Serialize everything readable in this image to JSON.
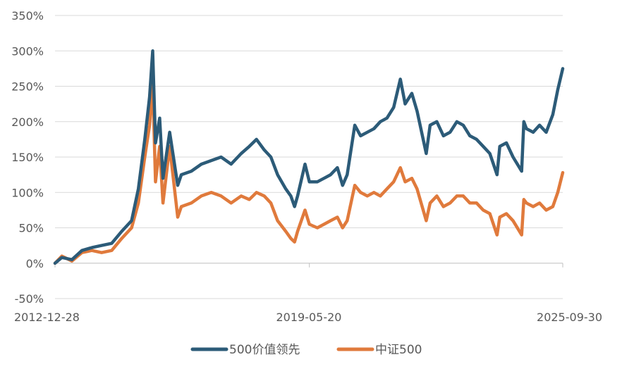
{
  "chart_data": {
    "type": "line",
    "title": "",
    "xlabel": "",
    "ylabel": "",
    "ylim": [
      -50,
      350
    ],
    "y_ticks": [
      "350%",
      "300%",
      "250%",
      "200%",
      "150%",
      "100%",
      "50%",
      "0%",
      "-50%"
    ],
    "x_ticks": [
      "2012-12-28",
      "2019-05-20",
      "2025-09-30"
    ],
    "x_range": [
      "2012-12-28",
      "2025-09-30"
    ],
    "grid": "horizontal",
    "legend_position": "bottom",
    "series": [
      {
        "name": "500价值领先",
        "color": "#2C5B78",
        "points": [
          [
            "2012-12-28",
            0
          ],
          [
            "2013-03-01",
            8
          ],
          [
            "2013-06-01",
            5
          ],
          [
            "2013-09-01",
            18
          ],
          [
            "2013-12-01",
            22
          ],
          [
            "2014-03-01",
            25
          ],
          [
            "2014-06-01",
            28
          ],
          [
            "2014-09-01",
            45
          ],
          [
            "2014-12-01",
            60
          ],
          [
            "2015-02-01",
            105
          ],
          [
            "2015-04-01",
            175
          ],
          [
            "2015-05-15",
            235
          ],
          [
            "2015-06-12",
            300
          ],
          [
            "2015-07-08",
            170
          ],
          [
            "2015-08-15",
            205
          ],
          [
            "2015-09-15",
            120
          ],
          [
            "2015-11-15",
            185
          ],
          [
            "2016-01-28",
            110
          ],
          [
            "2016-03-01",
            125
          ],
          [
            "2016-06-01",
            130
          ],
          [
            "2016-09-01",
            140
          ],
          [
            "2016-12-01",
            145
          ],
          [
            "2017-03-01",
            150
          ],
          [
            "2017-06-01",
            140
          ],
          [
            "2017-09-01",
            155
          ],
          [
            "2017-11-15",
            165
          ],
          [
            "2018-01-20",
            175
          ],
          [
            "2018-04-01",
            160
          ],
          [
            "2018-06-01",
            150
          ],
          [
            "2018-08-01",
            125
          ],
          [
            "2018-10-15",
            105
          ],
          [
            "2018-12-01",
            95
          ],
          [
            "2019-01-04",
            80
          ],
          [
            "2019-02-01",
            95
          ],
          [
            "2019-04-10",
            140
          ],
          [
            "2019-05-20",
            115
          ],
          [
            "2019-08-01",
            115
          ],
          [
            "2019-10-01",
            120
          ],
          [
            "2019-12-01",
            125
          ],
          [
            "2020-02-01",
            135
          ],
          [
            "2020-03-20",
            110
          ],
          [
            "2020-05-01",
            125
          ],
          [
            "2020-07-10",
            195
          ],
          [
            "2020-09-01",
            180
          ],
          [
            "2020-11-01",
            185
          ],
          [
            "2021-01-01",
            190
          ],
          [
            "2021-03-01",
            200
          ],
          [
            "2021-05-01",
            205
          ],
          [
            "2021-07-01",
            220
          ],
          [
            "2021-09-01",
            260
          ],
          [
            "2021-10-15",
            225
          ],
          [
            "2021-12-15",
            240
          ],
          [
            "2022-02-01",
            215
          ],
          [
            "2022-04-26",
            155
          ],
          [
            "2022-06-01",
            195
          ],
          [
            "2022-08-01",
            200
          ],
          [
            "2022-10-01",
            180
          ],
          [
            "2022-12-01",
            185
          ],
          [
            "2023-02-01",
            200
          ],
          [
            "2023-04-01",
            195
          ],
          [
            "2023-06-01",
            180
          ],
          [
            "2023-08-01",
            175
          ],
          [
            "2023-10-01",
            165
          ],
          [
            "2023-12-01",
            155
          ],
          [
            "2024-02-05",
            125
          ],
          [
            "2024-03-01",
            165
          ],
          [
            "2024-05-01",
            170
          ],
          [
            "2024-07-01",
            150
          ],
          [
            "2024-09-18",
            130
          ],
          [
            "2024-10-08",
            200
          ],
          [
            "2024-11-01",
            190
          ],
          [
            "2025-01-01",
            185
          ],
          [
            "2025-03-01",
            195
          ],
          [
            "2025-05-01",
            185
          ],
          [
            "2025-07-01",
            210
          ],
          [
            "2025-08-15",
            245
          ],
          [
            "2025-09-30",
            275
          ]
        ]
      },
      {
        "name": "中证500",
        "color": "#E07A3C",
        "points": [
          [
            "2012-12-28",
            0
          ],
          [
            "2013-03-01",
            10
          ],
          [
            "2013-06-01",
            3
          ],
          [
            "2013-09-01",
            15
          ],
          [
            "2013-12-01",
            18
          ],
          [
            "2014-03-01",
            15
          ],
          [
            "2014-06-01",
            18
          ],
          [
            "2014-09-01",
            35
          ],
          [
            "2014-12-01",
            50
          ],
          [
            "2015-02-01",
            85
          ],
          [
            "2015-04-01",
            150
          ],
          [
            "2015-05-15",
            195
          ],
          [
            "2015-06-12",
            255
          ],
          [
            "2015-07-08",
            115
          ],
          [
            "2015-08-15",
            165
          ],
          [
            "2015-09-15",
            85
          ],
          [
            "2015-11-15",
            165
          ],
          [
            "2016-01-28",
            65
          ],
          [
            "2016-03-01",
            80
          ],
          [
            "2016-06-01",
            85
          ],
          [
            "2016-09-01",
            95
          ],
          [
            "2016-12-01",
            100
          ],
          [
            "2017-03-01",
            95
          ],
          [
            "2017-06-01",
            85
          ],
          [
            "2017-09-01",
            95
          ],
          [
            "2017-11-15",
            90
          ],
          [
            "2018-01-20",
            100
          ],
          [
            "2018-04-01",
            95
          ],
          [
            "2018-06-01",
            85
          ],
          [
            "2018-08-01",
            60
          ],
          [
            "2018-10-15",
            45
          ],
          [
            "2018-12-01",
            35
          ],
          [
            "2019-01-04",
            30
          ],
          [
            "2019-02-01",
            45
          ],
          [
            "2019-04-10",
            75
          ],
          [
            "2019-05-20",
            55
          ],
          [
            "2019-08-01",
            50
          ],
          [
            "2019-10-01",
            55
          ],
          [
            "2019-12-01",
            60
          ],
          [
            "2020-02-01",
            65
          ],
          [
            "2020-03-20",
            50
          ],
          [
            "2020-05-01",
            60
          ],
          [
            "2020-07-10",
            110
          ],
          [
            "2020-09-01",
            100
          ],
          [
            "2020-11-01",
            95
          ],
          [
            "2021-01-01",
            100
          ],
          [
            "2021-03-01",
            95
          ],
          [
            "2021-05-01",
            105
          ],
          [
            "2021-07-01",
            115
          ],
          [
            "2021-09-01",
            135
          ],
          [
            "2021-10-15",
            115
          ],
          [
            "2021-12-15",
            120
          ],
          [
            "2022-02-01",
            105
          ],
          [
            "2022-04-26",
            60
          ],
          [
            "2022-06-01",
            85
          ],
          [
            "2022-08-01",
            95
          ],
          [
            "2022-10-01",
            80
          ],
          [
            "2022-12-01",
            85
          ],
          [
            "2023-02-01",
            95
          ],
          [
            "2023-04-01",
            95
          ],
          [
            "2023-06-01",
            85
          ],
          [
            "2023-08-01",
            85
          ],
          [
            "2023-10-01",
            75
          ],
          [
            "2023-12-01",
            70
          ],
          [
            "2024-02-05",
            40
          ],
          [
            "2024-03-01",
            65
          ],
          [
            "2024-05-01",
            70
          ],
          [
            "2024-07-01",
            60
          ],
          [
            "2024-09-18",
            40
          ],
          [
            "2024-10-08",
            90
          ],
          [
            "2024-11-01",
            85
          ],
          [
            "2025-01-01",
            80
          ],
          [
            "2025-03-01",
            85
          ],
          [
            "2025-05-01",
            75
          ],
          [
            "2025-07-01",
            80
          ],
          [
            "2025-08-15",
            100
          ],
          [
            "2025-09-30",
            128
          ]
        ]
      }
    ]
  }
}
